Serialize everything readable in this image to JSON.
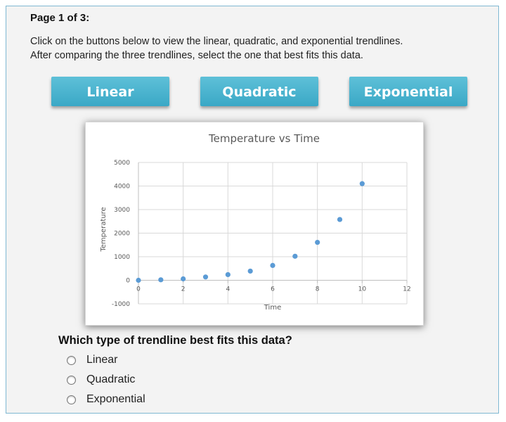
{
  "page": {
    "label": "Page 1 of 3:",
    "instructions": [
      "Click on the buttons below to view the linear, quadratic, and exponential trendlines.",
      "After comparing the three trendlines, select the one that best fits this data."
    ]
  },
  "buttons": {
    "linear": "Linear",
    "quadratic": "Quadratic",
    "exponential": "Exponential"
  },
  "chart_data": {
    "type": "scatter",
    "title": "Temperature vs Time",
    "xlabel": "Time",
    "ylabel": "Temperature",
    "xlim": [
      0,
      12
    ],
    "ylim": [
      -1000,
      5000
    ],
    "x_ticks": [
      0,
      2,
      4,
      6,
      8,
      10,
      12
    ],
    "y_ticks": [
      -1000,
      0,
      1000,
      2000,
      3000,
      4000,
      5000
    ],
    "grid": true,
    "legend": "none",
    "point_color": "#5b9bd5",
    "points": [
      {
        "x": 0,
        "y": 0
      },
      {
        "x": 1,
        "y": 20
      },
      {
        "x": 2,
        "y": 60
      },
      {
        "x": 3,
        "y": 140
      },
      {
        "x": 4,
        "y": 240
      },
      {
        "x": 5,
        "y": 390
      },
      {
        "x": 6,
        "y": 630
      },
      {
        "x": 7,
        "y": 1020
      },
      {
        "x": 8,
        "y": 1610
      },
      {
        "x": 9,
        "y": 2580
      },
      {
        "x": 10,
        "y": 4100
      }
    ]
  },
  "question": {
    "text": "Which type of trendline best fits this data?",
    "options": [
      "Linear",
      "Quadratic",
      "Exponential"
    ]
  }
}
